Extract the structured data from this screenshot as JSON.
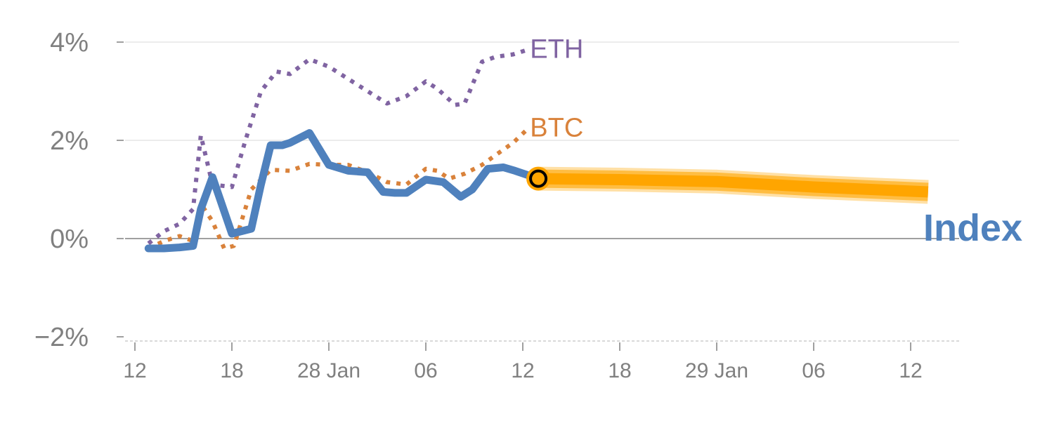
{
  "chart_data": {
    "type": "line",
    "title": "",
    "xlabel": "",
    "ylabel": "",
    "ylim": [
      -2,
      4
    ],
    "y_ticks": [
      {
        "value": 4,
        "label": "4%"
      },
      {
        "value": 2,
        "label": "2%"
      },
      {
        "value": 0,
        "label": "0%"
      },
      {
        "value": -2,
        "label": "−2%"
      }
    ],
    "x_range": [
      -0.5,
      42
    ],
    "x_ticks": [
      {
        "pos": 0,
        "label": "12"
      },
      {
        "pos": 5,
        "label": "18"
      },
      {
        "pos": 10,
        "label": "28 Jan"
      },
      {
        "pos": 15,
        "label": "06"
      },
      {
        "pos": 20,
        "label": "12"
      },
      {
        "pos": 25,
        "label": "18"
      },
      {
        "pos": 30,
        "label": "29 Jan"
      },
      {
        "pos": 35,
        "label": "06"
      },
      {
        "pos": 40,
        "label": "12"
      }
    ],
    "grid": true,
    "series": [
      {
        "name": "ETH",
        "style": "dotted",
        "color": "#8064a2",
        "x": [
          0.7,
          1.5,
          2.3,
          3,
          3.4,
          4,
          5,
          5.7,
          6.5,
          7.3,
          8,
          9,
          10,
          11,
          12,
          13,
          14,
          15,
          15.6,
          16.5,
          17,
          17.9,
          18.6,
          19.5,
          20.3
        ],
        "y": [
          -0.1,
          0.15,
          0.3,
          0.6,
          2.1,
          1.1,
          1.05,
          2,
          3,
          3.4,
          3.35,
          3.65,
          3.5,
          3.25,
          3,
          2.75,
          2.9,
          3.2,
          3.05,
          2.72,
          2.75,
          3.6,
          3.7,
          3.75,
          3.85
        ]
      },
      {
        "name": "BTC",
        "style": "dotted",
        "color": "#d9823b",
        "x": [
          0.7,
          1.5,
          2.3,
          3,
          3.5,
          4,
          4.6,
          5.1,
          6,
          7,
          8,
          9,
          10,
          11,
          12,
          13,
          14,
          15,
          15.6,
          16.2,
          17,
          17.9,
          18.6,
          19.5,
          20.3
        ],
        "y": [
          -0.2,
          -0.05,
          0.05,
          -0.05,
          0.65,
          0.35,
          -0.2,
          -0.15,
          1,
          1.4,
          1.38,
          1.52,
          1.5,
          1.5,
          1.35,
          1.15,
          1.1,
          1.42,
          1.38,
          1.22,
          1.32,
          1.5,
          1.7,
          1.95,
          2.25
        ]
      },
      {
        "name": "Index",
        "style": "solid",
        "color": "#4f81bd",
        "x": [
          0.7,
          1.5,
          2.3,
          3,
          3.4,
          4,
          5,
          6,
          6.5,
          7,
          7.6,
          8,
          9,
          10,
          11,
          12,
          12.8,
          13.4,
          14,
          15,
          15.9,
          16.8,
          17.4,
          18.2,
          19,
          19.6,
          20.8
        ],
        "y": [
          -0.2,
          -0.2,
          -0.18,
          -0.15,
          0.6,
          1.25,
          0.1,
          0.2,
          1.1,
          1.9,
          1.9,
          1.95,
          2.15,
          1.5,
          1.38,
          1.35,
          0.95,
          0.93,
          0.93,
          1.2,
          1.15,
          0.85,
          1,
          1.42,
          1.45,
          1.38,
          1.22
        ]
      }
    ],
    "forecast": {
      "color": "#ffa500",
      "x": [
        20.8,
        25,
        30,
        35,
        40.9
      ],
      "y": [
        1.22,
        1.2,
        1.16,
        1.05,
        0.95
      ]
    },
    "marker": {
      "x": 20.8,
      "y": 1.22
    }
  }
}
